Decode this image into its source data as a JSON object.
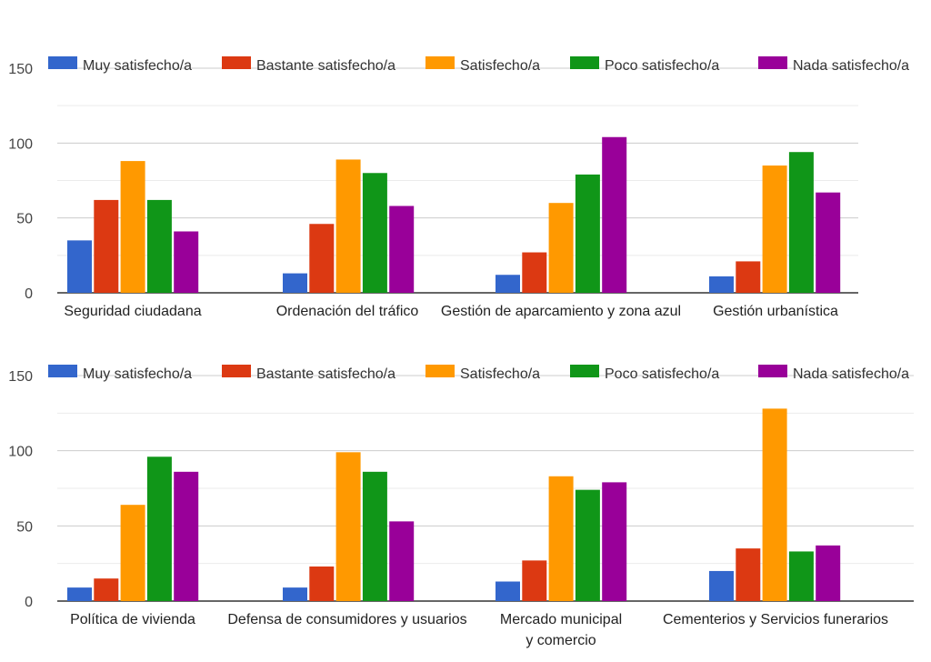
{
  "chart_data": [
    {
      "type": "bar",
      "categories": [
        "Seguridad ciudadana",
        "Ordenación del tráfico",
        "Gestión de aparcamiento y zona azul",
        "Gestión urbanística"
      ],
      "series": [
        {
          "name": "Muy satisfecho/a",
          "values": [
            35,
            13,
            12,
            11
          ]
        },
        {
          "name": "Bastante satisfecho/a",
          "values": [
            62,
            46,
            27,
            21
          ]
        },
        {
          "name": "Satisfecho/a",
          "values": [
            88,
            89,
            60,
            85
          ]
        },
        {
          "name": "Poco satisfecho/a",
          "values": [
            62,
            80,
            79,
            94
          ]
        },
        {
          "name": "Nada satisfecho/a",
          "values": [
            41,
            58,
            104,
            67
          ]
        }
      ],
      "yticks": [
        0,
        50,
        100,
        150
      ],
      "ylim": [
        0,
        150
      ],
      "grid": true,
      "legend": "top"
    },
    {
      "type": "bar",
      "categories": [
        "Política de vivienda",
        "Defensa de consumidores y usuarios",
        "Mercado municipal\ny comercio",
        "Cementerios y Servicios funerarios"
      ],
      "series": [
        {
          "name": "Muy satisfecho/a",
          "values": [
            9,
            9,
            13,
            20
          ]
        },
        {
          "name": "Bastante satisfecho/a",
          "values": [
            15,
            23,
            27,
            35
          ]
        },
        {
          "name": "Satisfecho/a",
          "values": [
            64,
            99,
            83,
            128
          ]
        },
        {
          "name": "Poco satisfecho/a",
          "values": [
            96,
            86,
            74,
            33
          ]
        },
        {
          "name": "Nada satisfecho/a",
          "values": [
            86,
            53,
            79,
            37
          ]
        }
      ],
      "yticks": [
        0,
        50,
        100,
        150
      ],
      "ylim": [
        0,
        150
      ],
      "grid": true,
      "legend": "top"
    }
  ],
  "colors": [
    "#3366cc",
    "#dc3912",
    "#ff9900",
    "#109618",
    "#990099"
  ]
}
